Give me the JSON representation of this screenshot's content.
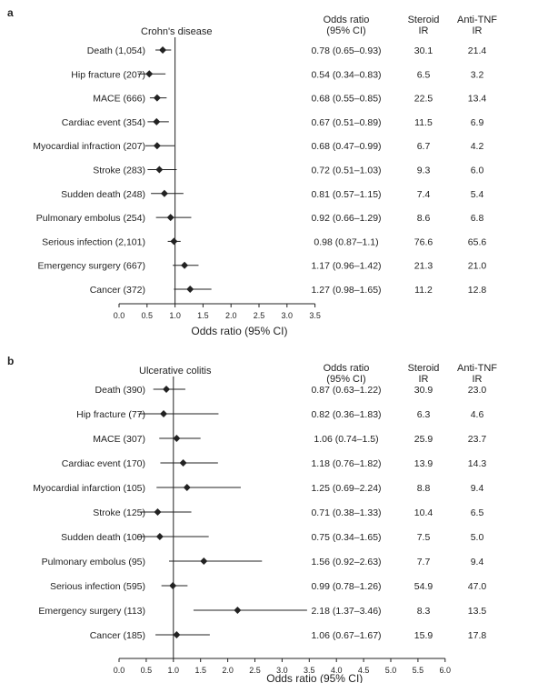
{
  "colors": {
    "ink": "#222222"
  },
  "column_headers": {
    "odds_ratio": [
      "Odds ratio",
      "(95% CI)"
    ],
    "steroid": [
      "Steroid",
      "IR"
    ],
    "anti_tnf": [
      "Anti-TNF",
      "IR"
    ]
  },
  "chart_data": [
    {
      "type": "forest",
      "panel_label": "a",
      "title": "Crohn's disease",
      "xlabel": "Odds ratio (95% CI)",
      "reference_line": 1.0,
      "xlim": [
        0,
        3.5
      ],
      "x_ticks": [
        "0.0",
        "0.5",
        "1.0",
        "1.5",
        "2.0",
        "2.5",
        "3.0",
        "3.5"
      ],
      "rows": [
        {
          "label": "Death (1,054)",
          "or": 0.78,
          "lo": 0.65,
          "hi": 0.93,
          "ci_text": "0.78 (0.65–0.93)",
          "steroid_ir": "30.1",
          "anti_tnf_ir": "21.4"
        },
        {
          "label": "Hip fracture (207)",
          "or": 0.54,
          "lo": 0.34,
          "hi": 0.83,
          "ci_text": "0.54 (0.34–0.83)",
          "steroid_ir": "6.5",
          "anti_tnf_ir": "3.2"
        },
        {
          "label": "MACE (666)",
          "or": 0.68,
          "lo": 0.55,
          "hi": 0.85,
          "ci_text": "0.68 (0.55–0.85)",
          "steroid_ir": "22.5",
          "anti_tnf_ir": "13.4"
        },
        {
          "label": "Cardiac event (354)",
          "or": 0.67,
          "lo": 0.51,
          "hi": 0.89,
          "ci_text": "0.67 (0.51–0.89)",
          "steroid_ir": "11.5",
          "anti_tnf_ir": "6.9"
        },
        {
          "label": "Myocardial infraction (207)",
          "or": 0.68,
          "lo": 0.47,
          "hi": 0.99,
          "ci_text": "0.68 (0.47–0.99)",
          "steroid_ir": "6.7",
          "anti_tnf_ir": "4.2"
        },
        {
          "label": "Stroke (283)",
          "or": 0.72,
          "lo": 0.51,
          "hi": 1.03,
          "ci_text": "0.72 (0.51–1.03)",
          "steroid_ir": "9.3",
          "anti_tnf_ir": "6.0"
        },
        {
          "label": "Sudden death (248)",
          "or": 0.81,
          "lo": 0.57,
          "hi": 1.15,
          "ci_text": "0.81 (0.57–1.15)",
          "steroid_ir": "7.4",
          "anti_tnf_ir": "5.4"
        },
        {
          "label": "Pulmonary embolus (254)",
          "or": 0.92,
          "lo": 0.66,
          "hi": 1.29,
          "ci_text": "0.92 (0.66–1.29)",
          "steroid_ir": "8.6",
          "anti_tnf_ir": "6.8"
        },
        {
          "label": "Serious infection (2,101)",
          "or": 0.98,
          "lo": 0.87,
          "hi": 1.1,
          "ci_text": "0.98 (0.87–1.1)",
          "steroid_ir": "76.6",
          "anti_tnf_ir": "65.6"
        },
        {
          "label": "Emergency surgery (667)",
          "or": 1.17,
          "lo": 0.96,
          "hi": 1.42,
          "ci_text": "1.17 (0.96–1.42)",
          "steroid_ir": "21.3",
          "anti_tnf_ir": "21.0"
        },
        {
          "label": "Cancer (372)",
          "or": 1.27,
          "lo": 0.98,
          "hi": 1.65,
          "ci_text": "1.27 (0.98–1.65)",
          "steroid_ir": "11.2",
          "anti_tnf_ir": "12.8"
        }
      ]
    },
    {
      "type": "forest",
      "panel_label": "b",
      "title": "Ulcerative colitis",
      "xlabel": "Odds ratio (95% CI)",
      "reference_line": 1.0,
      "xlim": [
        0,
        6.0
      ],
      "x_ticks": [
        "0.0",
        "0.5",
        "1.0",
        "1.5",
        "2.0",
        "2.5",
        "3.0",
        "3.5",
        "4.0",
        "4.5",
        "5.0",
        "5.5",
        "6.0"
      ],
      "rows": [
        {
          "label": "Death (390)",
          "or": 0.87,
          "lo": 0.63,
          "hi": 1.22,
          "ci_text": "0.87 (0.63–1.22)",
          "steroid_ir": "30.9",
          "anti_tnf_ir": "23.0"
        },
        {
          "label": "Hip fracture (77)",
          "or": 0.82,
          "lo": 0.36,
          "hi": 1.83,
          "ci_text": "0.82 (0.36–1.83)",
          "steroid_ir": "6.3",
          "anti_tnf_ir": "4.6"
        },
        {
          "label": "MACE (307)",
          "or": 1.06,
          "lo": 0.74,
          "hi": 1.5,
          "ci_text": "1.06 (0.74–1.5)",
          "steroid_ir": "25.9",
          "anti_tnf_ir": "23.7"
        },
        {
          "label": "Cardiac event (170)",
          "or": 1.18,
          "lo": 0.76,
          "hi": 1.82,
          "ci_text": "1.18 (0.76–1.82)",
          "steroid_ir": "13.9",
          "anti_tnf_ir": "14.3"
        },
        {
          "label": "Myocardial infarction (105)",
          "or": 1.25,
          "lo": 0.69,
          "hi": 2.24,
          "ci_text": "1.25 (0.69–2.24)",
          "steroid_ir": "8.8",
          "anti_tnf_ir": "9.4"
        },
        {
          "label": "Stroke (125)",
          "or": 0.71,
          "lo": 0.38,
          "hi": 1.33,
          "ci_text": "0.71 (0.38–1.33)",
          "steroid_ir": "10.4",
          "anti_tnf_ir": "6.5"
        },
        {
          "label": "Sudden death (100)",
          "or": 0.75,
          "lo": 0.34,
          "hi": 1.65,
          "ci_text": "0.75 (0.34–1.65)",
          "steroid_ir": "7.5",
          "anti_tnf_ir": "5.0"
        },
        {
          "label": "Pulmonary embolus (95)",
          "or": 1.56,
          "lo": 0.92,
          "hi": 2.63,
          "ci_text": "1.56 (0.92–2.63)",
          "steroid_ir": "7.7",
          "anti_tnf_ir": "9.4"
        },
        {
          "label": "Serious infection (595)",
          "or": 0.99,
          "lo": 0.78,
          "hi": 1.26,
          "ci_text": "0.99 (0.78–1.26)",
          "steroid_ir": "54.9",
          "anti_tnf_ir": "47.0"
        },
        {
          "label": "Emergency surgery (113)",
          "or": 2.18,
          "lo": 1.37,
          "hi": 3.46,
          "ci_text": "2.18 (1.37–3.46)",
          "steroid_ir": "8.3",
          "anti_tnf_ir": "13.5"
        },
        {
          "label": "Cancer (185)",
          "or": 1.06,
          "lo": 0.67,
          "hi": 1.67,
          "ci_text": "1.06 (0.67–1.67)",
          "steroid_ir": "15.9",
          "anti_tnf_ir": "17.8"
        }
      ]
    }
  ]
}
